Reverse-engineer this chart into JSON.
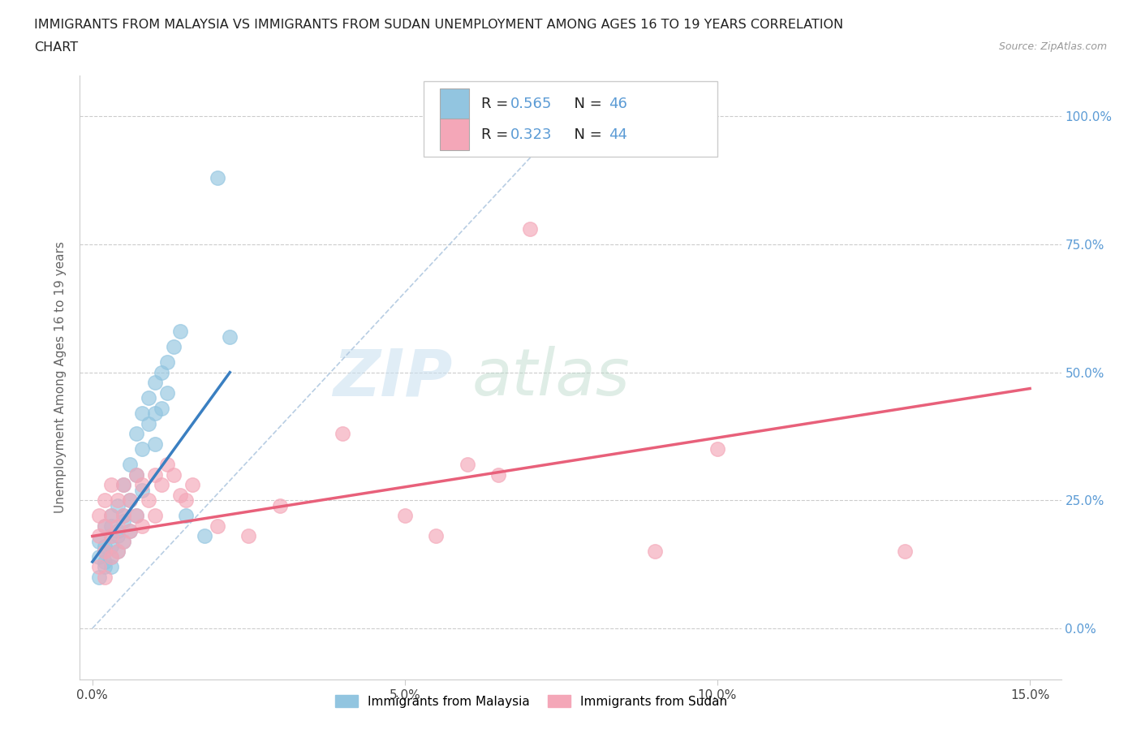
{
  "title_line1": "IMMIGRANTS FROM MALAYSIA VS IMMIGRANTS FROM SUDAN UNEMPLOYMENT AMONG AGES 16 TO 19 YEARS CORRELATION",
  "title_line2": "CHART",
  "source_text": "Source: ZipAtlas.com",
  "ylabel": "Unemployment Among Ages 16 to 19 years",
  "malaysia_R": 0.565,
  "malaysia_N": 46,
  "sudan_R": 0.323,
  "sudan_N": 44,
  "malaysia_color": "#92C5E0",
  "sudan_color": "#F4A7B8",
  "malaysia_line_color": "#3a7fc1",
  "sudan_line_color": "#e8607a",
  "background_color": "#ffffff",
  "grid_color": "#dddddd",
  "legend_label_malaysia": "Immigrants from Malaysia",
  "legend_label_sudan": "Immigrants from Sudan",
  "malaysia_scatter_x": [
    0.001,
    0.001,
    0.001,
    0.002,
    0.002,
    0.002,
    0.002,
    0.002,
    0.003,
    0.003,
    0.003,
    0.003,
    0.003,
    0.003,
    0.004,
    0.004,
    0.004,
    0.004,
    0.005,
    0.005,
    0.005,
    0.005,
    0.006,
    0.006,
    0.006,
    0.007,
    0.007,
    0.007,
    0.008,
    0.008,
    0.008,
    0.009,
    0.009,
    0.01,
    0.01,
    0.01,
    0.011,
    0.011,
    0.012,
    0.012,
    0.013,
    0.014,
    0.015,
    0.018,
    0.02,
    0.022
  ],
  "malaysia_scatter_y": [
    0.14,
    0.1,
    0.17,
    0.12,
    0.16,
    0.2,
    0.13,
    0.15,
    0.14,
    0.18,
    0.22,
    0.12,
    0.16,
    0.2,
    0.18,
    0.24,
    0.15,
    0.19,
    0.22,
    0.28,
    0.17,
    0.21,
    0.25,
    0.32,
    0.19,
    0.3,
    0.38,
    0.22,
    0.35,
    0.42,
    0.27,
    0.4,
    0.45,
    0.42,
    0.48,
    0.36,
    0.5,
    0.43,
    0.52,
    0.46,
    0.55,
    0.58,
    0.22,
    0.18,
    0.88,
    0.57
  ],
  "sudan_scatter_x": [
    0.001,
    0.001,
    0.001,
    0.002,
    0.002,
    0.002,
    0.002,
    0.003,
    0.003,
    0.003,
    0.003,
    0.004,
    0.004,
    0.004,
    0.005,
    0.005,
    0.005,
    0.006,
    0.006,
    0.007,
    0.007,
    0.008,
    0.008,
    0.009,
    0.01,
    0.01,
    0.011,
    0.012,
    0.013,
    0.014,
    0.015,
    0.016,
    0.02,
    0.025,
    0.03,
    0.04,
    0.05,
    0.055,
    0.06,
    0.065,
    0.07,
    0.09,
    0.1,
    0.13
  ],
  "sudan_scatter_y": [
    0.12,
    0.18,
    0.22,
    0.1,
    0.15,
    0.2,
    0.25,
    0.14,
    0.18,
    0.22,
    0.28,
    0.15,
    0.2,
    0.25,
    0.17,
    0.22,
    0.28,
    0.19,
    0.25,
    0.22,
    0.3,
    0.2,
    0.28,
    0.25,
    0.22,
    0.3,
    0.28,
    0.32,
    0.3,
    0.26,
    0.25,
    0.28,
    0.2,
    0.18,
    0.24,
    0.38,
    0.22,
    0.18,
    0.32,
    0.3,
    0.78,
    0.15,
    0.35,
    0.15
  ]
}
